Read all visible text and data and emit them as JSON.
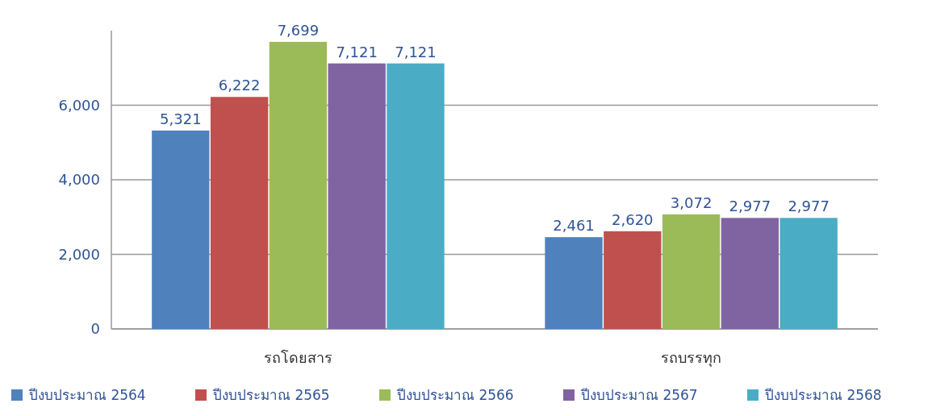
{
  "chart_data": {
    "type": "bar",
    "categories": [
      "รถโดยสาร",
      "รถบรรทุก"
    ],
    "series": [
      {
        "name": "ปีงบประมาณ 2564",
        "color": "#4f81bd",
        "values": [
          5321,
          2461
        ],
        "value_labels": [
          "5,321",
          "2,461"
        ]
      },
      {
        "name": "ปีงบประมาณ 2565",
        "color": "#c0504d",
        "values": [
          6222,
          2620
        ],
        "value_labels": [
          "6,222",
          "2,620"
        ]
      },
      {
        "name": "ปีงบประมาณ 2566",
        "color": "#9bbb59",
        "values": [
          7699,
          3072
        ],
        "value_labels": [
          "7,699",
          "3,072"
        ]
      },
      {
        "name": "ปีงบประมาณ 2567",
        "color": "#8064a2",
        "values": [
          7121,
          2977
        ],
        "value_labels": [
          "7,121",
          "2,977"
        ]
      },
      {
        "name": "ปีงบประมาณ 2568",
        "color": "#4bacc6",
        "values": [
          7121,
          2977
        ],
        "value_labels": [
          "7,121",
          "2,977"
        ]
      }
    ],
    "ylim": [
      0,
      8000
    ],
    "yticks": [
      {
        "value": 0,
        "label": "0"
      },
      {
        "value": 2000,
        "label": "2,000"
      },
      {
        "value": 4000,
        "label": "4,000"
      },
      {
        "value": 6000,
        "label": "6,000"
      }
    ],
    "grid": "y",
    "legend": "bottom"
  }
}
